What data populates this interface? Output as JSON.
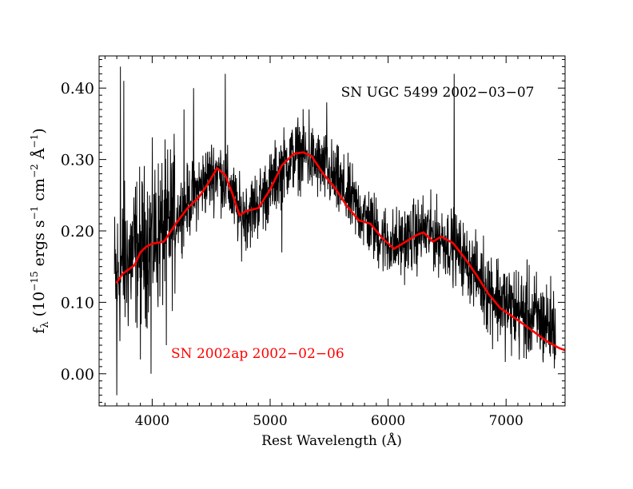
{
  "chart_data": {
    "type": "line",
    "xlabel": "Rest Wavelength (Å)",
    "ylabel": {
      "base": "f",
      "sub": "λ",
      "open": " (10",
      "exp1": "−15",
      "mid1": " ergs s",
      "exp2": "−1",
      "mid2": " cm",
      "exp3": "−2",
      "mid3": " Å",
      "exp4": "−1",
      "close": ")"
    },
    "xlim": [
      3550,
      7500
    ],
    "ylim": [
      -0.045,
      0.445
    ],
    "xticks": [
      4000,
      5000,
      6000,
      7000
    ],
    "xtick_labels": [
      "4000",
      "5000",
      "6000",
      "7000"
    ],
    "yticks": [
      0.0,
      0.1,
      0.2,
      0.3,
      0.4
    ],
    "ytick_labels": [
      "0.00",
      "0.10",
      "0.20",
      "0.30",
      "0.40"
    ],
    "grid": false,
    "series": [
      {
        "name": "SN UGC 5499 2002-03-07",
        "label": "SN UGC 5499 2002−03−07",
        "color": "#000000",
        "style": "noisy",
        "x_range": [
          3680,
          7420
        ],
        "continuum": [
          [
            3680,
            0.13
          ],
          [
            3750,
            0.15
          ],
          [
            3850,
            0.17
          ],
          [
            4000,
            0.19
          ],
          [
            4100,
            0.2
          ],
          [
            4250,
            0.23
          ],
          [
            4350,
            0.25
          ],
          [
            4450,
            0.27
          ],
          [
            4550,
            0.285
          ],
          [
            4650,
            0.26
          ],
          [
            4750,
            0.22
          ],
          [
            4850,
            0.23
          ],
          [
            5000,
            0.26
          ],
          [
            5100,
            0.29
          ],
          [
            5250,
            0.31
          ],
          [
            5350,
            0.3
          ],
          [
            5500,
            0.28
          ],
          [
            5650,
            0.25
          ],
          [
            5800,
            0.22
          ],
          [
            5950,
            0.19
          ],
          [
            6050,
            0.18
          ],
          [
            6200,
            0.19
          ],
          [
            6300,
            0.2
          ],
          [
            6450,
            0.19
          ],
          [
            6550,
            0.18
          ],
          [
            6700,
            0.15
          ],
          [
            6850,
            0.12
          ],
          [
            7000,
            0.095
          ],
          [
            7200,
            0.08
          ],
          [
            7420,
            0.065
          ]
        ],
        "spikes": [
          [
            3730,
            0.43
          ],
          [
            3700,
            -0.03
          ],
          [
            3760,
            0.41
          ],
          [
            4270,
            0.37
          ],
          [
            4350,
            0.4
          ],
          [
            4620,
            0.42
          ],
          [
            5330,
            0.37
          ],
          [
            5480,
            0.38
          ],
          [
            6560,
            0.42
          ],
          [
            3900,
            0.02
          ],
          [
            3990,
            0.0
          ],
          [
            4120,
            0.04
          ],
          [
            5100,
            0.17
          ],
          [
            6550,
            0.12
          ]
        ]
      },
      {
        "name": "SN 2002ap 2002-02-06",
        "label": "SN 2002ap 2002−02−06",
        "color": "#ff0000",
        "style": "smooth",
        "points": [
          [
            3700,
            0.128
          ],
          [
            3750,
            0.14
          ],
          [
            3800,
            0.146
          ],
          [
            3850,
            0.152
          ],
          [
            3900,
            0.17
          ],
          [
            3950,
            0.178
          ],
          [
            4000,
            0.182
          ],
          [
            4100,
            0.185
          ],
          [
            4200,
            0.21
          ],
          [
            4300,
            0.232
          ],
          [
            4400,
            0.248
          ],
          [
            4480,
            0.268
          ],
          [
            4550,
            0.288
          ],
          [
            4620,
            0.278
          ],
          [
            4680,
            0.252
          ],
          [
            4740,
            0.222
          ],
          [
            4800,
            0.228
          ],
          [
            4900,
            0.232
          ],
          [
            5000,
            0.258
          ],
          [
            5100,
            0.292
          ],
          [
            5200,
            0.308
          ],
          [
            5280,
            0.31
          ],
          [
            5350,
            0.305
          ],
          [
            5450,
            0.28
          ],
          [
            5550,
            0.26
          ],
          [
            5650,
            0.235
          ],
          [
            5750,
            0.215
          ],
          [
            5850,
            0.21
          ],
          [
            5950,
            0.19
          ],
          [
            6050,
            0.175
          ],
          [
            6150,
            0.185
          ],
          [
            6250,
            0.195
          ],
          [
            6300,
            0.198
          ],
          [
            6380,
            0.185
          ],
          [
            6450,
            0.192
          ],
          [
            6550,
            0.183
          ],
          [
            6650,
            0.162
          ],
          [
            6750,
            0.138
          ],
          [
            6850,
            0.112
          ],
          [
            6950,
            0.092
          ],
          [
            7100,
            0.075
          ],
          [
            7250,
            0.057
          ],
          [
            7350,
            0.045
          ],
          [
            7450,
            0.036
          ],
          [
            7500,
            0.033
          ]
        ]
      }
    ],
    "annotations": [
      {
        "series": 0,
        "text": "SN UGC 5499 2002−03−07",
        "x": 5600,
        "y": 0.388,
        "color": "#000000"
      },
      {
        "series": 1,
        "text": "SN 2002ap 2002−02−06",
        "x": 4160,
        "y": 0.022,
        "color": "#ff0000"
      }
    ]
  }
}
